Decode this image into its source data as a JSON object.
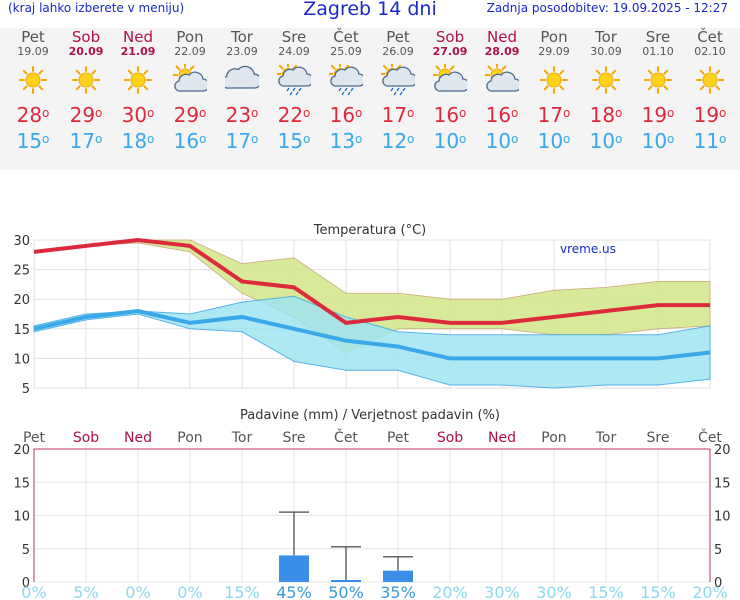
{
  "header": {
    "hint": "(kraj lahko izberete v meniju)",
    "title": "Zagreb 14 dni",
    "updated": "Zadnja posodobitev: 19.09.2025 - 12:27"
  },
  "forecast": [
    {
      "day": "Pet",
      "date": "19.09",
      "weekend": false,
      "icon": "sun-icon",
      "max": "28",
      "min": "15"
    },
    {
      "day": "Sob",
      "date": "20.09",
      "weekend": true,
      "icon": "sun-icon",
      "max": "29",
      "min": "17"
    },
    {
      "day": "Ned",
      "date": "21.09",
      "weekend": true,
      "icon": "sun-icon",
      "max": "30",
      "min": "18"
    },
    {
      "day": "Pon",
      "date": "22.09",
      "weekend": false,
      "icon": "sun-cloud-icon",
      "max": "29",
      "min": "16"
    },
    {
      "day": "Tor",
      "date": "23.09",
      "weekend": false,
      "icon": "cloud-icon",
      "max": "23",
      "min": "17"
    },
    {
      "day": "Sre",
      "date": "24.09",
      "weekend": false,
      "icon": "sun-cloud-rain-icon",
      "max": "22",
      "min": "15"
    },
    {
      "day": "Čet",
      "date": "25.09",
      "weekend": false,
      "icon": "sun-cloud-rain-icon",
      "max": "16",
      "min": "13"
    },
    {
      "day": "Pet",
      "date": "26.09",
      "weekend": false,
      "icon": "sun-cloud-rain-icon",
      "max": "17",
      "min": "12"
    },
    {
      "day": "Sob",
      "date": "27.09",
      "weekend": true,
      "icon": "sun-cloud-icon",
      "max": "16",
      "min": "10"
    },
    {
      "day": "Ned",
      "date": "28.09",
      "weekend": true,
      "icon": "sun-cloud-icon",
      "max": "16",
      "min": "10"
    },
    {
      "day": "Pon",
      "date": "29.09",
      "weekend": false,
      "icon": "sun-icon",
      "max": "17",
      "min": "10"
    },
    {
      "day": "Tor",
      "date": "30.09",
      "weekend": false,
      "icon": "sun-icon",
      "max": "18",
      "min": "10"
    },
    {
      "day": "Sre",
      "date": "01.10",
      "weekend": false,
      "icon": "sun-icon",
      "max": "19",
      "min": "10"
    },
    {
      "day": "Čet",
      "date": "02.10",
      "weekend": false,
      "icon": "sun-icon",
      "max": "19",
      "min": "11"
    }
  ],
  "colors": {
    "max": "#dc2a3c",
    "min": "#38a8e8",
    "weekend": "#b0104a",
    "title": "#1a28c8",
    "maxband": "#d4e890",
    "minband": "#a0e4f0",
    "overlap": "#90d890",
    "precip": "#3a8ee8",
    "prob": "#8fd8ee"
  },
  "chart_data": [
    {
      "type": "line",
      "title": "Temperatura (°C)",
      "watermark": "vreme.us",
      "categories": [
        "Pet",
        "Sob",
        "Ned",
        "Pon",
        "Tor",
        "Sre",
        "Čet",
        "Pet",
        "Sob",
        "Ned",
        "Pon",
        "Tor",
        "Sre",
        "Čet"
      ],
      "ylim": [
        5,
        30
      ],
      "yticks": [
        5,
        10,
        15,
        20,
        25,
        30
      ],
      "series": [
        {
          "role": "max",
          "values": [
            28,
            29,
            30,
            29,
            23,
            22,
            16,
            17,
            16,
            16,
            17,
            18,
            19,
            19
          ]
        },
        {
          "role": "min",
          "values": [
            15,
            17,
            18,
            16,
            17,
            15,
            13,
            12,
            10,
            10,
            10,
            10,
            10,
            11
          ]
        }
      ],
      "max_band": {
        "upper": [
          28,
          29,
          30,
          30,
          26,
          27,
          21,
          21,
          20,
          20,
          21.5,
          22,
          23,
          23
        ],
        "lower": [
          28,
          29,
          29.5,
          28,
          21,
          17,
          11,
          15,
          15,
          15,
          14,
          14,
          15,
          15.5
        ]
      },
      "min_band": {
        "upper": [
          15.5,
          17.5,
          18,
          17.5,
          19.5,
          20.5,
          17,
          14.5,
          14,
          14,
          14,
          14,
          14,
          15.5
        ],
        "lower": [
          14.5,
          16.5,
          17.5,
          15,
          14.5,
          9.5,
          8,
          8,
          5.5,
          5.5,
          5,
          5.5,
          5.5,
          6.5
        ]
      },
      "grid": true
    },
    {
      "type": "bar",
      "title": "Padavine (mm) / Verjetnost padavin (%)",
      "categories": [
        "Pet",
        "Sob",
        "Ned",
        "Pon",
        "Tor",
        "Sre",
        "Čet",
        "Pet",
        "Sob",
        "Ned",
        "Pon",
        "Tor",
        "Sre",
        "Čet"
      ],
      "ylim": [
        0,
        20
      ],
      "yticks": [
        0,
        5,
        10,
        15,
        20
      ],
      "values": [
        0,
        0,
        0,
        0,
        0,
        4,
        0.3,
        1.7,
        0,
        0,
        0,
        0,
        0,
        0
      ],
      "error_high": [
        0,
        0,
        0,
        0,
        0,
        10.5,
        5.3,
        3.8,
        0,
        0,
        0,
        0,
        0,
        0
      ],
      "probability": [
        "0%",
        "5%",
        "0%",
        "0%",
        "15%",
        "45%",
        "50%",
        "35%",
        "20%",
        "30%",
        "30%",
        "15%",
        "15%",
        "20%"
      ],
      "probability_bold": [
        false,
        false,
        false,
        false,
        false,
        true,
        true,
        true,
        false,
        false,
        false,
        false,
        false,
        false
      ]
    }
  ]
}
